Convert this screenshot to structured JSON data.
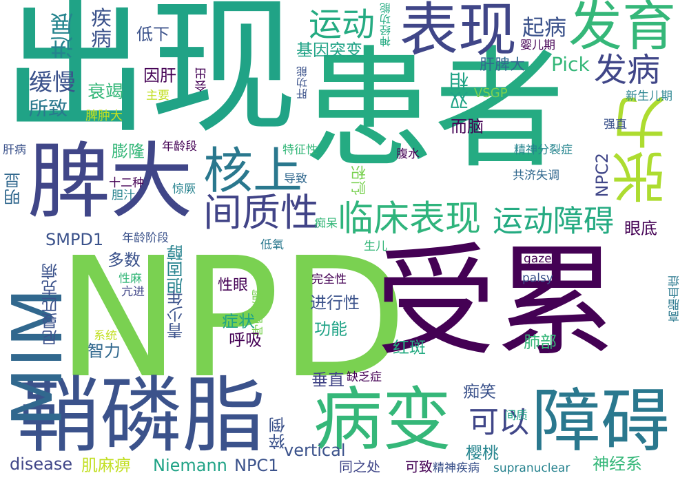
{
  "words": [
    {
      "text": "出现",
      "color": "#20a386"
    },
    {
      "text": "患者",
      "color": "#25ab82"
    },
    {
      "text": "NPD",
      "color": "#7ad151"
    },
    {
      "text": "受累",
      "color": "#440154"
    },
    {
      "text": "鞘磷脂",
      "color": "#3b528b"
    },
    {
      "text": "病变",
      "color": "#35b779"
    },
    {
      "text": "障碍",
      "color": "#2a788e"
    },
    {
      "text": "脾大",
      "color": "#404688"
    },
    {
      "text": "表现",
      "color": "#404688"
    },
    {
      "text": "发育",
      "color": "#35b779"
    },
    {
      "text": "MIM",
      "color": "#31688e"
    },
    {
      "text": "张力",
      "color": "#addc30"
    },
    {
      "text": "核上",
      "color": "#2a788e"
    },
    {
      "text": "间质性",
      "color": "#414487"
    },
    {
      "text": "临床表现",
      "color": "#2fb47c"
    },
    {
      "text": "运动障碍",
      "color": "#25ab82"
    },
    {
      "text": "发病",
      "color": "#404688"
    },
    {
      "text": "运动",
      "color": "#25ab82"
    },
    {
      "text": "可以",
      "color": "#404688"
    },
    {
      "text": "起病",
      "color": "#3b528b"
    },
    {
      "text": "进展",
      "color": "#25848e"
    },
    {
      "text": "疾病",
      "color": "#3b528b"
    },
    {
      "text": "神经功能",
      "color": "#25ab82"
    },
    {
      "text": "低下",
      "color": "#3b528b"
    },
    {
      "text": "基因突变",
      "color": "#20a386"
    },
    {
      "text": "婴儿期",
      "color": "#440154"
    },
    {
      "text": "肝脾大",
      "color": "#31688e"
    },
    {
      "text": "Pick",
      "color": "#35b779"
    },
    {
      "text": "缓慢",
      "color": "#3b528b"
    },
    {
      "text": "因肝",
      "color": "#440154"
    },
    {
      "text": "会出",
      "color": "#440154"
    },
    {
      "text": "肝功能",
      "color": "#3b528b"
    },
    {
      "text": "双相",
      "color": "#20a386"
    },
    {
      "text": "主要",
      "color": "#c2df23"
    },
    {
      "text": "衰竭",
      "color": "#35b779"
    },
    {
      "text": "所致",
      "color": "#2a788e"
    },
    {
      "text": "VSGP",
      "color": "#7ad151"
    },
    {
      "text": "新生儿期",
      "color": "#26828e"
    },
    {
      "text": "脾肿大",
      "color": "#c2df23"
    },
    {
      "text": "而脑",
      "color": "#440154"
    },
    {
      "text": "强直",
      "color": "#3b528b"
    },
    {
      "text": "肝病",
      "color": "#3b528b"
    },
    {
      "text": "年龄段",
      "color": "#440154"
    },
    {
      "text": "膨隆",
      "color": "#35b779"
    },
    {
      "text": "特征性",
      "color": "#35b779"
    },
    {
      "text": "腹水",
      "color": "#440154"
    },
    {
      "text": "精神分裂症",
      "color": "#25848e"
    },
    {
      "text": "NPC2",
      "color": "#404688"
    },
    {
      "text": "明显",
      "color": "#31688e"
    },
    {
      "text": "十二种",
      "color": "#440154"
    },
    {
      "text": "胆汁",
      "color": "#26828e"
    },
    {
      "text": "惊厥",
      "color": "#26828e"
    },
    {
      "text": "导致",
      "color": "#31688e"
    },
    {
      "text": "贮积",
      "color": "#7ad151"
    },
    {
      "text": "共济失调",
      "color": "#31688e"
    },
    {
      "text": "痴呆",
      "color": "#35b779"
    },
    {
      "text": "眼底",
      "color": "#440154"
    },
    {
      "text": "SMPD1",
      "color": "#3b528b"
    },
    {
      "text": "年龄阶段",
      "color": "#3b528b"
    },
    {
      "text": "胆固醇",
      "color": "#26828e"
    },
    {
      "text": "低氧",
      "color": "#2a788e"
    },
    {
      "text": "生儿",
      "color": "#35b779"
    },
    {
      "text": "多数",
      "color": "#3b528b"
    },
    {
      "text": "gaze",
      "color": "#440154"
    },
    {
      "text": "尼曼匹克病",
      "color": "#3b528b"
    },
    {
      "text": "性麻",
      "color": "#35b779"
    },
    {
      "text": "亢进",
      "color": "#404688"
    },
    {
      "text": "性眼",
      "color": "#440154"
    },
    {
      "text": "完全性",
      "color": "#440154"
    },
    {
      "text": "palsy",
      "color": "#3b528b"
    },
    {
      "text": "高脂血症",
      "color": "#2a788e"
    },
    {
      "text": "青少年",
      "color": "#3b528b"
    },
    {
      "text": "进行性",
      "color": "#3b528b"
    },
    {
      "text": "呼吸衰竭",
      "color": "#7ad151"
    },
    {
      "text": "系统",
      "color": "#c2df23"
    },
    {
      "text": "症状",
      "color": "#20a386"
    },
    {
      "text": "功能",
      "color": "#20a386"
    },
    {
      "text": "智力",
      "color": "#31688e"
    },
    {
      "text": "呼吸",
      "color": "#440154"
    },
    {
      "text": "红斑",
      "color": "#25ab82"
    },
    {
      "text": "肺部",
      "color": "#35b779"
    },
    {
      "text": "垂直",
      "color": "#414487"
    },
    {
      "text": "缺乏症",
      "color": "#440154"
    },
    {
      "text": "痴笑",
      "color": "#3b528b"
    },
    {
      "text": "间质",
      "color": "#20a386"
    },
    {
      "text": "猝倒",
      "color": "#3b528b"
    },
    {
      "text": "vertical",
      "color": "#3b528b"
    },
    {
      "text": "樱桃",
      "color": "#25848e"
    },
    {
      "text": "神经系",
      "color": "#35b779"
    },
    {
      "text": "disease",
      "color": "#404688"
    },
    {
      "text": "肌麻痹",
      "color": "#c2df23"
    },
    {
      "text": "Niemann",
      "color": "#20a386"
    },
    {
      "text": "NPC1",
      "color": "#3b528b"
    },
    {
      "text": "同之处",
      "color": "#404688"
    },
    {
      "text": "可致",
      "color": "#440154"
    },
    {
      "text": "精神疾病",
      "color": "#3b528b"
    },
    {
      "text": "supranuclear",
      "color": "#26828e"
    }
  ]
}
